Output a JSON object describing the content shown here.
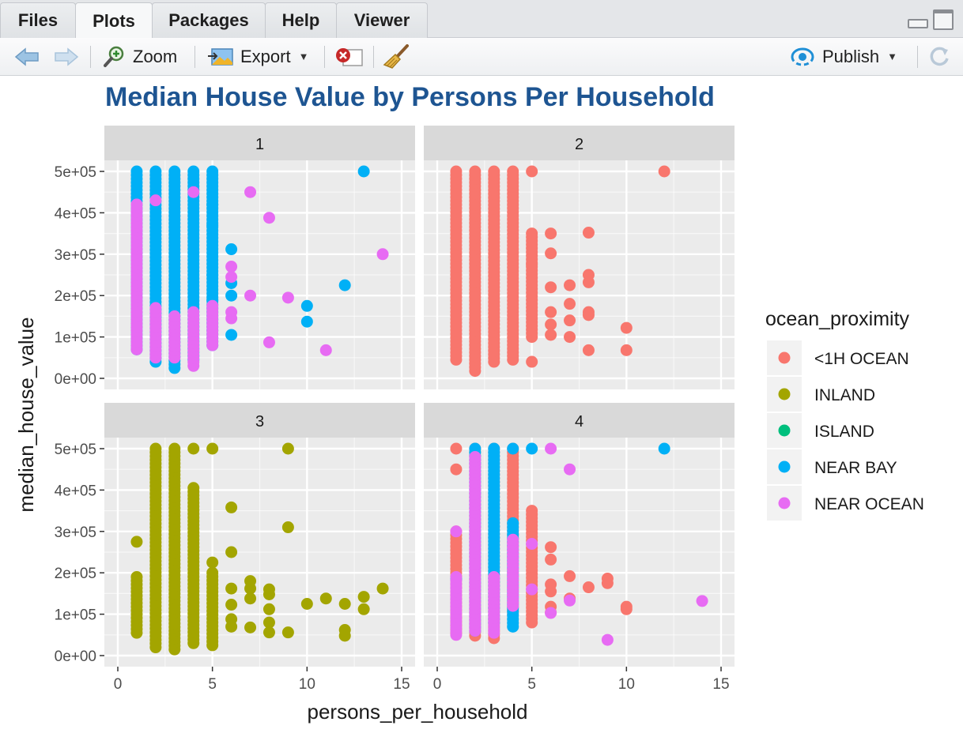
{
  "tabs": [
    {
      "label": "Files",
      "active": false
    },
    {
      "label": "Plots",
      "active": true
    },
    {
      "label": "Packages",
      "active": false
    },
    {
      "label": "Help",
      "active": false
    },
    {
      "label": "Viewer",
      "active": false
    }
  ],
  "toolbar": {
    "zoom_label": "Zoom",
    "export_label": "Export",
    "publish_label": "Publish"
  },
  "colors": {
    "title": "#1e5592",
    "panel_bg": "#ebebeb",
    "strip_bg": "#d9d9d9",
    "grid": "#ffffff"
  },
  "chart_data": {
    "type": "scatter",
    "title": "Median House Value by Persons Per Household",
    "xlabel": "persons_per_household",
    "ylabel": "median_house_value",
    "xlim": [
      0,
      15
    ],
    "ylim": [
      0,
      500000
    ],
    "x_ticks": [
      0,
      5,
      10,
      15
    ],
    "x_tick_labels": [
      "0",
      "5",
      "10",
      "15"
    ],
    "y_ticks": [
      0,
      100000,
      200000,
      300000,
      400000,
      500000
    ],
    "y_tick_labels": [
      "0e+00",
      "1e+05",
      "2e+05",
      "3e+05",
      "4e+05",
      "5e+05"
    ],
    "facets": [
      "1",
      "2",
      "3",
      "4"
    ],
    "legend": {
      "title": "ocean_proximity",
      "position": "right",
      "entries": [
        {
          "name": "<1H OCEAN",
          "color": "#f8766d"
        },
        {
          "name": "INLAND",
          "color": "#a3a500"
        },
        {
          "name": "ISLAND",
          "color": "#00bf7d"
        },
        {
          "name": "NEAR BAY",
          "color": "#00b0f6"
        },
        {
          "name": "NEAR OCEAN",
          "color": "#e76bf3"
        }
      ]
    },
    "panels": [
      {
        "facet": "1",
        "series": [
          {
            "name": "NEAR BAY",
            "columns": [
              {
                "x": 1,
                "ymin": 70000,
                "ymax": 500000
              },
              {
                "x": 2,
                "ymin": 40000,
                "ymax": 500000
              },
              {
                "x": 3,
                "ymin": 25000,
                "ymax": 500000
              },
              {
                "x": 4,
                "ymin": 45000,
                "ymax": 500000
              },
              {
                "x": 5,
                "ymin": 80000,
                "ymax": 500000
              }
            ],
            "points": [
              {
                "x": 5,
                "y": 420000
              },
              {
                "x": 5,
                "y": 370000
              },
              {
                "x": 5,
                "y": 250000
              },
              {
                "x": 5,
                "y": 190000
              },
              {
                "x": 6,
                "y": 312000
              },
              {
                "x": 6,
                "y": 230000
              },
              {
                "x": 6,
                "y": 200000
              },
              {
                "x": 6,
                "y": 105000
              },
              {
                "x": 10,
                "y": 175000
              },
              {
                "x": 10,
                "y": 137000
              },
              {
                "x": 12,
                "y": 225000
              },
              {
                "x": 13,
                "y": 500000
              }
            ]
          },
          {
            "name": "NEAR OCEAN",
            "columns": [
              {
                "x": 1,
                "ymin": 70000,
                "ymax": 420000
              },
              {
                "x": 2,
                "ymin": 50000,
                "ymax": 170000
              },
              {
                "x": 3,
                "ymin": 50000,
                "ymax": 150000
              },
              {
                "x": 4,
                "ymin": 30000,
                "ymax": 160000
              },
              {
                "x": 5,
                "ymin": 80000,
                "ymax": 175000
              }
            ],
            "points": [
              {
                "x": 2,
                "y": 430000
              },
              {
                "x": 4,
                "y": 450000
              },
              {
                "x": 6,
                "y": 270000
              },
              {
                "x": 6,
                "y": 245000
              },
              {
                "x": 6,
                "y": 160000
              },
              {
                "x": 6,
                "y": 145000
              },
              {
                "x": 7,
                "y": 450000
              },
              {
                "x": 7,
                "y": 200000
              },
              {
                "x": 8,
                "y": 388000
              },
              {
                "x": 8,
                "y": 87000
              },
              {
                "x": 9,
                "y": 195000
              },
              {
                "x": 11,
                "y": 68000
              },
              {
                "x": 14,
                "y": 300000
              }
            ]
          }
        ]
      },
      {
        "facet": "2",
        "series": [
          {
            "name": "<1H OCEAN",
            "columns": [
              {
                "x": 1,
                "ymin": 45000,
                "ymax": 500000
              },
              {
                "x": 2,
                "ymin": 18000,
                "ymax": 500000
              },
              {
                "x": 3,
                "ymin": 40000,
                "ymax": 500000
              },
              {
                "x": 4,
                "ymin": 45000,
                "ymax": 500000
              },
              {
                "x": 5,
                "ymin": 100000,
                "ymax": 350000
              }
            ],
            "points": [
              {
                "x": 5,
                "y": 500000
              },
              {
                "x": 5,
                "y": 275000
              },
              {
                "x": 5,
                "y": 40000
              },
              {
                "x": 6,
                "y": 350000
              },
              {
                "x": 6,
                "y": 302000
              },
              {
                "x": 6,
                "y": 220000
              },
              {
                "x": 6,
                "y": 160000
              },
              {
                "x": 6,
                "y": 130000
              },
              {
                "x": 6,
                "y": 105000
              },
              {
                "x": 7,
                "y": 225000
              },
              {
                "x": 7,
                "y": 180000
              },
              {
                "x": 7,
                "y": 140000
              },
              {
                "x": 7,
                "y": 100000
              },
              {
                "x": 8,
                "y": 352000
              },
              {
                "x": 8,
                "y": 250000
              },
              {
                "x": 8,
                "y": 232000
              },
              {
                "x": 8,
                "y": 160000
              },
              {
                "x": 8,
                "y": 153000
              },
              {
                "x": 8,
                "y": 68000
              },
              {
                "x": 10,
                "y": 122000
              },
              {
                "x": 10,
                "y": 68000
              },
              {
                "x": 12,
                "y": 500000
              }
            ]
          }
        ]
      },
      {
        "facet": "3",
        "series": [
          {
            "name": "INLAND",
            "columns": [
              {
                "x": 1,
                "ymin": 55000,
                "ymax": 190000
              },
              {
                "x": 2,
                "ymin": 20000,
                "ymax": 500000
              },
              {
                "x": 3,
                "ymin": 15000,
                "ymax": 500000
              },
              {
                "x": 4,
                "ymin": 30000,
                "ymax": 405000
              },
              {
                "x": 5,
                "ymin": 25000,
                "ymax": 200000
              }
            ],
            "points": [
              {
                "x": 1,
                "y": 275000
              },
              {
                "x": 4,
                "y": 500000
              },
              {
                "x": 5,
                "y": 500000
              },
              {
                "x": 5,
                "y": 225000
              },
              {
                "x": 6,
                "y": 358000
              },
              {
                "x": 6,
                "y": 250000
              },
              {
                "x": 6,
                "y": 162000
              },
              {
                "x": 6,
                "y": 123000
              },
              {
                "x": 6,
                "y": 88000
              },
              {
                "x": 6,
                "y": 70000
              },
              {
                "x": 7,
                "y": 180000
              },
              {
                "x": 7,
                "y": 162000
              },
              {
                "x": 7,
                "y": 138000
              },
              {
                "x": 7,
                "y": 68000
              },
              {
                "x": 8,
                "y": 160000
              },
              {
                "x": 8,
                "y": 148000
              },
              {
                "x": 8,
                "y": 112000
              },
              {
                "x": 8,
                "y": 80000
              },
              {
                "x": 8,
                "y": 56000
              },
              {
                "x": 9,
                "y": 500000
              },
              {
                "x": 9,
                "y": 310000
              },
              {
                "x": 9,
                "y": 56000
              },
              {
                "x": 10,
                "y": 125000
              },
              {
                "x": 11,
                "y": 138000
              },
              {
                "x": 12,
                "y": 125000
              },
              {
                "x": 12,
                "y": 62000
              },
              {
                "x": 12,
                "y": 48000
              },
              {
                "x": 13,
                "y": 142000
              },
              {
                "x": 13,
                "y": 112000
              },
              {
                "x": 14,
                "y": 162000
              }
            ]
          }
        ]
      },
      {
        "facet": "4",
        "series": [
          {
            "name": "<1H OCEAN",
            "columns": [
              {
                "x": 1,
                "ymin": 55000,
                "ymax": 300000
              },
              {
                "x": 2,
                "ymin": 48000,
                "ymax": 500000
              },
              {
                "x": 3,
                "ymin": 42000,
                "ymax": 500000
              },
              {
                "x": 4,
                "ymin": 100000,
                "ymax": 500000
              },
              {
                "x": 5,
                "ymin": 80000,
                "ymax": 350000
              }
            ],
            "points": [
              {
                "x": 1,
                "y": 500000
              },
              {
                "x": 1,
                "y": 450000
              },
              {
                "x": 6,
                "y": 262000
              },
              {
                "x": 6,
                "y": 232000
              },
              {
                "x": 6,
                "y": 172000
              },
              {
                "x": 6,
                "y": 155000
              },
              {
                "x": 6,
                "y": 118000
              },
              {
                "x": 6,
                "y": 104000
              },
              {
                "x": 7,
                "y": 192000
              },
              {
                "x": 7,
                "y": 138000
              },
              {
                "x": 8,
                "y": 165000
              },
              {
                "x": 9,
                "y": 186000
              },
              {
                "x": 9,
                "y": 175000
              },
              {
                "x": 10,
                "y": 118000
              },
              {
                "x": 10,
                "y": 112000
              }
            ]
          },
          {
            "name": "NEAR BAY",
            "columns": [
              {
                "x": 2,
                "ymin": 60000,
                "ymax": 500000
              },
              {
                "x": 3,
                "ymin": 80000,
                "ymax": 500000
              },
              {
                "x": 4,
                "ymin": 70000,
                "ymax": 320000
              }
            ],
            "points": [
              {
                "x": 1,
                "y": 185000
              },
              {
                "x": 4,
                "y": 500000
              },
              {
                "x": 5,
                "y": 500000
              },
              {
                "x": 12,
                "y": 500000
              }
            ]
          },
          {
            "name": "NEAR OCEAN",
            "columns": [
              {
                "x": 1,
                "ymin": 50000,
                "ymax": 190000
              },
              {
                "x": 2,
                "ymin": 60000,
                "ymax": 480000
              },
              {
                "x": 3,
                "ymin": 55000,
                "ymax": 190000
              },
              {
                "x": 4,
                "ymin": 120000,
                "ymax": 280000
              }
            ],
            "points": [
              {
                "x": 1,
                "y": 300000
              },
              {
                "x": 5,
                "y": 270000
              },
              {
                "x": 5,
                "y": 160000
              },
              {
                "x": 6,
                "y": 500000
              },
              {
                "x": 6,
                "y": 103000
              },
              {
                "x": 7,
                "y": 450000
              },
              {
                "x": 7,
                "y": 133000
              },
              {
                "x": 9,
                "y": 38000
              },
              {
                "x": 14,
                "y": 132000
              }
            ]
          }
        ]
      }
    ]
  }
}
